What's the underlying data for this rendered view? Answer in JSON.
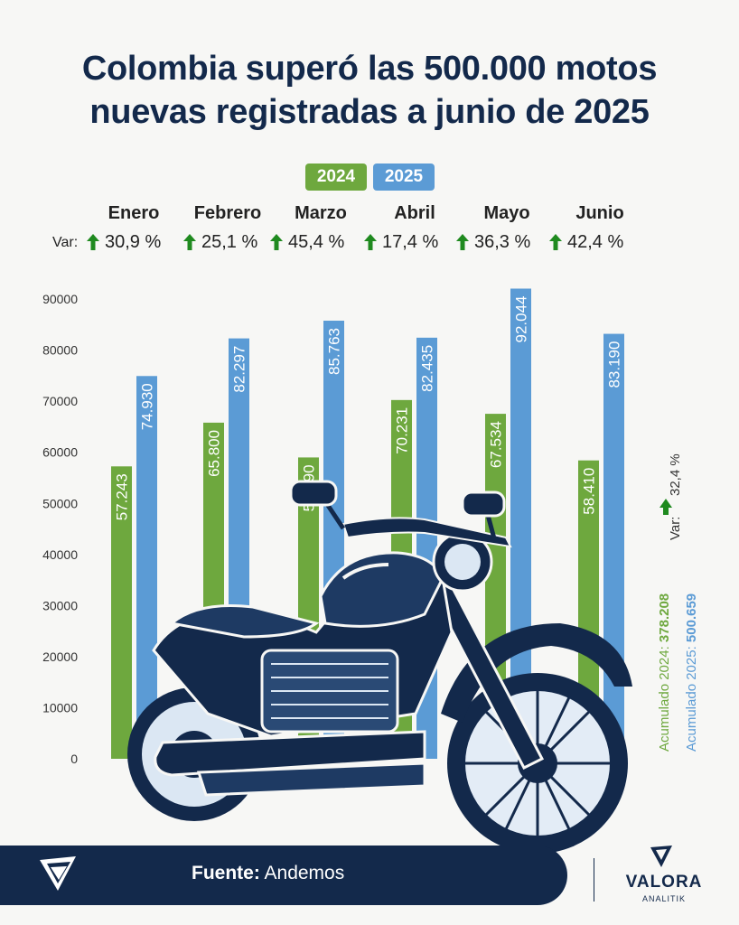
{
  "title": {
    "line1": "Colombia superó las 500.000 motos",
    "line2": "nuevas registradas a junio de 2025"
  },
  "legend": [
    {
      "label": "2024",
      "color": "#6ea83e"
    },
    {
      "label": "2025",
      "color": "#5b9bd5"
    }
  ],
  "variation": {
    "label": "Var:",
    "items": [
      "30,9 %",
      "25,1 %",
      "45,4 %",
      "17,4 %",
      "36,3 %",
      "42,4 %"
    ]
  },
  "totals": {
    "var_label": "Var:",
    "var_value": "32,4 %",
    "acc_2024": "Acumulado 2024: ",
    "acc_2024_value": "378.208",
    "acc_2025": "Acumulado 2025: ",
    "acc_2025_value": "500.659"
  },
  "colors": {
    "green": "#6ea83e",
    "blue": "#5b9bd5",
    "navy": "#13294b",
    "arrow": "#1f8a1f"
  },
  "footer": {
    "source_label": "Fuente:",
    "source_value": " Andemos"
  },
  "brand": {
    "name": "VALORA",
    "sub": "ANALITIK"
  },
  "chart_data": {
    "type": "bar",
    "categories": [
      "Enero",
      "Febrero",
      "Marzo",
      "Abril",
      "Mayo",
      "Junio"
    ],
    "series": [
      {
        "name": "2024",
        "values": [
          57243,
          65800,
          58990,
          70231,
          67534,
          58410
        ],
        "labels": [
          "57.243",
          "65.800",
          "58.990",
          "70.231",
          "67.534",
          "58.410"
        ]
      },
      {
        "name": "2025",
        "values": [
          74930,
          82297,
          85763,
          82435,
          92044,
          83190
        ],
        "labels": [
          "74.930",
          "82.297",
          "85.763",
          "82.435",
          "92.044",
          "83.190"
        ]
      }
    ],
    "yticks": [
      "0",
      "10000",
      "20000",
      "30000",
      "40000",
      "50000",
      "60000",
      "70000",
      "80000",
      "90000"
    ],
    "ylim": [
      0,
      92044
    ],
    "grid": false,
    "legend": "top-center"
  }
}
